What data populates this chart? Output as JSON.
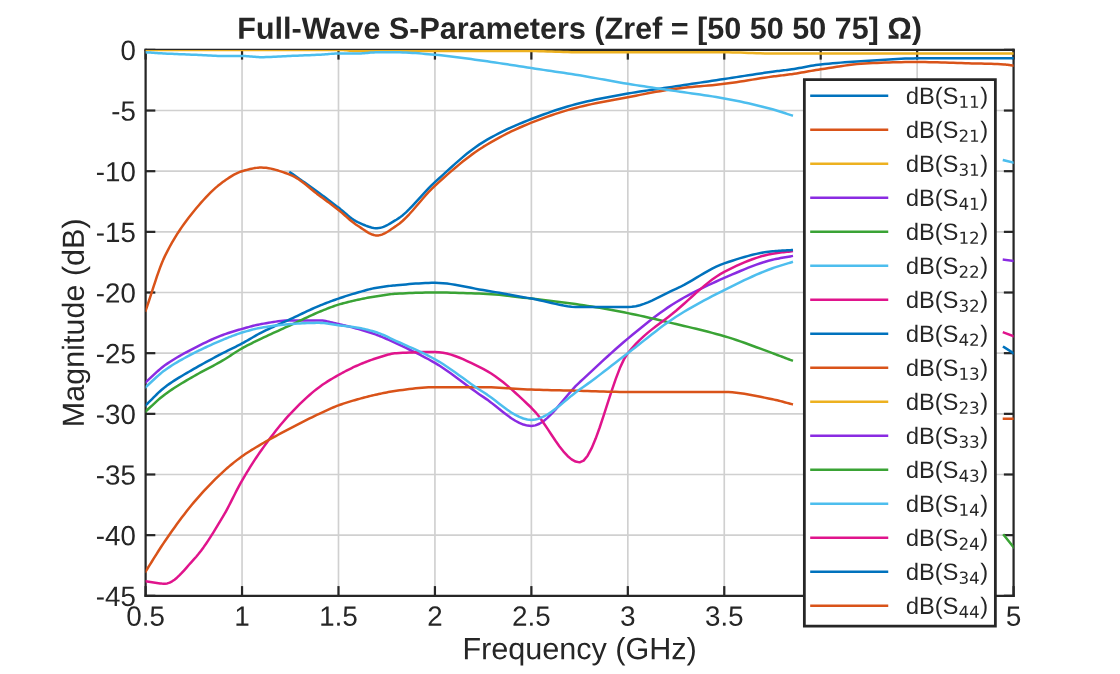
{
  "chart_data": {
    "type": "line",
    "title": "Full-Wave S-Parameters (Zref = [50 50 50 75] Ω)",
    "xlabel": "Frequency (GHz)",
    "ylabel": "Magnitude (dB)",
    "x": [
      0.5,
      0.6,
      0.75,
      0.9,
      1.0,
      1.1,
      1.25,
      1.4,
      1.5,
      1.6,
      1.7,
      1.8,
      2.0,
      2.25,
      2.5,
      2.75,
      3.0,
      3.25,
      3.5,
      3.75,
      3.85,
      4.0,
      4.25,
      4.5,
      4.75,
      4.95,
      5.0
    ],
    "series": [
      {
        "name": "dB(S$_{11}$)",
        "color": "#0072bd",
        "values": [
          null,
          null,
          null,
          null,
          null,
          null,
          -10.1,
          -11.8,
          -13.0,
          -14.2,
          -14.7,
          -14.0,
          -10.9,
          -7.6,
          -5.7,
          -4.4,
          -3.6,
          -3.0,
          -2.4,
          -1.8,
          -1.6,
          -1.2,
          -0.9,
          -0.7,
          -0.7,
          -0.7,
          -0.7
        ]
      },
      {
        "name": "dB(S$_{21}$)",
        "color": "#d95319",
        "values": [
          -21.5,
          -17,
          -13.3,
          -10.9,
          -10.0,
          -9.7,
          -10.3,
          -12.0,
          -13.2,
          -14.5,
          -15.3,
          -14.5,
          -11.2,
          -8.0,
          -6.0,
          -4.7,
          -3.9,
          -3.2,
          -2.8,
          -2.2,
          -2.0,
          -1.6,
          -1.1,
          -1.0,
          -1.1,
          -1.2,
          -1.3
        ]
      },
      {
        "name": "dB(S$_{31}$)",
        "color": "#edb120",
        "values": [
          0,
          0,
          0,
          0,
          0,
          0,
          0,
          0,
          0,
          -0.1,
          -0.1,
          -0.1,
          -0.1,
          -0.1,
          -0.1,
          -0.2,
          -0.2,
          -0.2,
          -0.2,
          -0.3,
          -0.3,
          -0.3,
          -0.3,
          -0.3,
          -0.3,
          -0.3,
          -0.3
        ]
      },
      {
        "name": "dB(S$_{41}$)",
        "color": "#8a2be2",
        "values": [
          -27.4,
          -26,
          -24.6,
          -23.5,
          -23,
          -22.6,
          -22.3,
          -22.3,
          -22.6,
          -23,
          -23.5,
          -24.2,
          -25.8,
          -28.6,
          -31.0,
          -27.4,
          -23.8,
          -20.8,
          -18.8,
          -17.3,
          -17.0,
          null,
          null,
          null,
          null,
          -17.3,
          -17.4
        ]
      },
      {
        "name": "dB(S$_{12}$)",
        "color": "#3aa335",
        "values": [
          -29.8,
          -28.4,
          -26.9,
          -25.6,
          -24.6,
          -23.8,
          -22.7,
          -21.6,
          -21,
          -20.6,
          -20.3,
          -20.1,
          -20,
          -20.1,
          -20.5,
          -21,
          -21.7,
          -22.6,
          -23.6,
          -25,
          -25.6,
          null,
          null,
          null,
          null,
          -40,
          -41
        ]
      },
      {
        "name": "dB(S$_{22}$)",
        "color": "#4dbeee",
        "values": [
          -0.2,
          -0.3,
          -0.4,
          -0.5,
          -0.5,
          -0.6,
          -0.5,
          -0.4,
          -0.3,
          -0.3,
          -0.2,
          -0.2,
          -0.4,
          -0.9,
          -1.5,
          -2.1,
          -2.8,
          -3.4,
          -4.0,
          -4.9,
          -5.4,
          null,
          null,
          null,
          null,
          -9.1,
          -9.3
        ]
      },
      {
        "name": "dB(S$_{32}$)",
        "color": "#e0148c",
        "values": [
          -43.8,
          -44,
          -42,
          -38.5,
          -35.5,
          -33,
          -30,
          -27.8,
          -26.8,
          -26,
          -25.4,
          -25,
          -24.9,
          -26.3,
          -29.5,
          -34,
          -25,
          -21.5,
          -18.3,
          -16.8,
          -16.6,
          null,
          null,
          null,
          null,
          -23.3,
          -23.6
        ]
      },
      {
        "name": "dB(S$_{42}$)",
        "color": "#0072bd",
        "values": [
          -29.3,
          -27.8,
          -26.3,
          -25.0,
          -24.2,
          -23.3,
          -22.2,
          -21.1,
          -20.5,
          -20.0,
          -19.6,
          -19.4,
          -19.2,
          -19.8,
          -20.5,
          -21.2,
          -21.2,
          -19.7,
          -17.6,
          -16.6,
          -16.5,
          null,
          null,
          null,
          null,
          -24.5,
          -25
        ]
      },
      {
        "name": "dB(S$_{13}$)",
        "color": "#d95319",
        "values": [
          -43,
          -40.5,
          -37.3,
          -34.8,
          -33.5,
          -32.5,
          -31.2,
          -30,
          -29.3,
          -28.8,
          -28.4,
          -28.1,
          -27.8,
          -27.8,
          -28,
          -28.1,
          -28.2,
          -28.2,
          -28.2,
          -28.8,
          -29.2,
          null,
          null,
          null,
          null,
          -30.4,
          -30.4
        ]
      },
      {
        "name": "dB(S$_{23}$)",
        "color": "#edb120",
        "values": [
          null,
          null,
          null,
          null,
          null,
          null,
          null,
          null,
          null,
          null,
          null,
          null,
          null,
          null,
          null,
          null,
          null,
          null,
          null,
          null,
          null,
          null,
          null,
          null,
          null,
          null,
          null
        ]
      },
      {
        "name": "dB(S$_{33}$)",
        "color": "#8a2be2",
        "values": [
          null,
          null,
          null,
          null,
          null,
          null,
          null,
          null,
          null,
          null,
          null,
          null,
          null,
          null,
          null,
          null,
          null,
          null,
          null,
          null,
          null,
          null,
          null,
          null,
          null,
          null,
          null
        ]
      },
      {
        "name": "dB(S$_{43}$)",
        "color": "#3aa335",
        "values": [
          null,
          null,
          null,
          null,
          null,
          null,
          null,
          null,
          null,
          null,
          null,
          null,
          null,
          null,
          null,
          null,
          null,
          null,
          null,
          null,
          null,
          null,
          null,
          null,
          null,
          null,
          null
        ]
      },
      {
        "name": "dB(S$_{14}$)",
        "color": "#4dbeee",
        "values": [
          -27.8,
          -26.4,
          -25.0,
          -23.9,
          -23.3,
          -22.9,
          -22.6,
          -22.5,
          -22.7,
          -22.9,
          -23.3,
          -24.0,
          -25.5,
          -28.2,
          -30.5,
          -28.0,
          -25.0,
          -22,
          -19.8,
          -18.0,
          -17.5,
          null,
          null,
          null,
          null,
          null,
          null
        ]
      },
      {
        "name": "dB(S$_{24}$)",
        "color": "#e0148c",
        "values": [
          null,
          null,
          null,
          null,
          null,
          null,
          null,
          null,
          null,
          null,
          null,
          null,
          null,
          null,
          null,
          null,
          null,
          null,
          null,
          null,
          null,
          null,
          null,
          null,
          null,
          null,
          null
        ]
      },
      {
        "name": "dB(S$_{34}$)",
        "color": "#0072bd",
        "values": [
          null,
          null,
          null,
          null,
          null,
          null,
          null,
          null,
          null,
          null,
          null,
          null,
          null,
          null,
          null,
          null,
          null,
          null,
          null,
          null,
          null,
          null,
          null,
          null,
          null,
          null,
          null
        ]
      },
      {
        "name": "dB(S$_{44}$)",
        "color": "#d95319",
        "values": [
          null,
          null,
          null,
          null,
          null,
          null,
          null,
          null,
          null,
          null,
          null,
          null,
          null,
          null,
          null,
          null,
          null,
          null,
          null,
          null,
          null,
          null,
          null,
          null,
          null,
          null,
          null
        ]
      }
    ],
    "xlim": [
      0.5,
      5
    ],
    "xticks": [
      0.5,
      1,
      1.5,
      2,
      2.5,
      3,
      3.5,
      {
        "value": 4,
        "label": null
      },
      {
        "value": 4.5,
        "label": null
      },
      5
    ],
    "ylim": [
      -45,
      0
    ],
    "yticks": [
      -45,
      -40,
      -35,
      -30,
      -25,
      -20,
      -15,
      -10,
      -5,
      0
    ],
    "grid": true,
    "legend": "right",
    "marker": "none",
    "line_style": "solid"
  }
}
